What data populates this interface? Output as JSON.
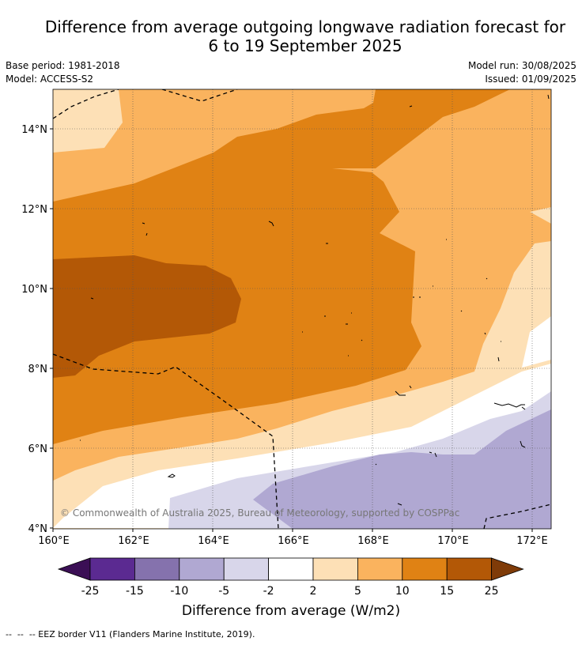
{
  "title": {
    "line1": "Difference from average outgoing longwave radiation forecast for",
    "line2": "6 to 19 September 2025"
  },
  "meta": {
    "base_period": "Base period: 1981-2018",
    "model": "Model: ACCESS-S2",
    "model_run": "Model run: 30/08/2025",
    "issued": "Issued: 01/09/2025"
  },
  "copyright": "© Commonwealth of Australia 2025, Bureau of Meteorology, supported by COSPPac",
  "axes": {
    "x_ticks": [
      "160°E",
      "162°E",
      "164°E",
      "166°E",
      "168°E",
      "170°E",
      "172°E"
    ],
    "y_ticks": [
      "14°N",
      "12°N",
      "10°N",
      "8°N",
      "6°N",
      "4°N"
    ]
  },
  "colorbar": {
    "title": "Difference from average (W/m2)",
    "labels": [
      "-25",
      "-15",
      "-10",
      "-5",
      "-2",
      "2",
      "5",
      "10",
      "15",
      "25"
    ],
    "colors": [
      "#3b0f55",
      "#5b2a91",
      "#8572ad",
      "#b0a8d2",
      "#d8d6ea",
      "#ffffff",
      "#fde0b6",
      "#fab35e",
      "#e08214",
      "#b35806",
      "#7f3b08"
    ]
  },
  "footer": "--  --  -- EEZ border V11 (Flanders Marine Institute, 2019)."
}
